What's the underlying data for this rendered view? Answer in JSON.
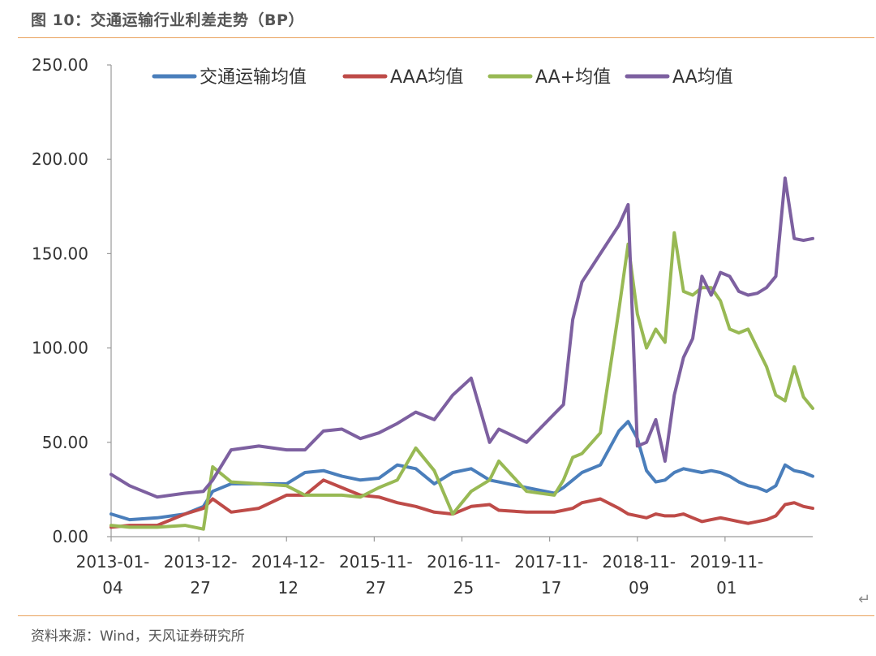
{
  "figure": {
    "title": "图 10：交通运输行业利差走势（BP）",
    "source": "资料来源：Wind，天风证券研究所",
    "return_mark": "↵"
  },
  "chart_data": {
    "type": "line",
    "title": "",
    "xlabel": "",
    "ylabel": "",
    "ylim": [
      0,
      250
    ],
    "grid": false,
    "legend_position": "top",
    "x_tick_labels": [
      [
        "2013-01-",
        "04"
      ],
      [
        "2013-12-",
        "27"
      ],
      [
        "2014-12-",
        "12"
      ],
      [
        "2015-11-",
        "27"
      ],
      [
        "2016-11-",
        "25"
      ],
      [
        "2017-11-",
        "17"
      ],
      [
        "2018-11-",
        "09"
      ],
      [
        "2019-11-",
        "01"
      ]
    ],
    "y_tick_labels": [
      "0.00",
      "50.00",
      "100.00",
      "150.00",
      "200.00",
      "250.00"
    ],
    "y_ticks": [
      0,
      50,
      100,
      150,
      200,
      250
    ],
    "x": [
      2013.0,
      2013.2,
      2013.5,
      2013.8,
      2014.0,
      2014.1,
      2014.3,
      2014.6,
      2014.9,
      2015.1,
      2015.3,
      2015.5,
      2015.7,
      2015.9,
      2016.1,
      2016.3,
      2016.5,
      2016.7,
      2016.9,
      2017.1,
      2017.2,
      2017.5,
      2017.8,
      2017.9,
      2018.0,
      2018.1,
      2018.3,
      2018.5,
      2018.6,
      2018.7,
      2018.8,
      2018.9,
      2019.0,
      2019.1,
      2019.2,
      2019.3,
      2019.4,
      2019.5,
      2019.6,
      2019.7,
      2019.8,
      2019.9,
      2020.0,
      2020.1,
      2020.2,
      2020.3,
      2020.4,
      2020.5,
      2020.6
    ],
    "series": [
      {
        "name": "交通运输均值",
        "color": "#4a7ebb",
        "values": [
          12,
          9,
          10,
          12,
          16,
          24,
          28,
          28,
          28,
          34,
          35,
          32,
          30,
          31,
          38,
          36,
          28,
          34,
          36,
          30,
          29,
          26,
          23,
          26,
          30,
          34,
          38,
          56,
          61,
          52,
          35,
          29,
          30,
          34,
          36,
          35,
          34,
          35,
          34,
          32,
          29,
          27,
          26,
          24,
          27,
          38,
          35,
          34,
          32
        ]
      },
      {
        "name": "AAA均值",
        "color": "#be4b48",
        "values": [
          5,
          6,
          6,
          12,
          15,
          20,
          13,
          15,
          22,
          22,
          30,
          26,
          22,
          21,
          18,
          16,
          13,
          12,
          16,
          17,
          14,
          13,
          13,
          14,
          15,
          18,
          20,
          15,
          12,
          11,
          10,
          12,
          11,
          11,
          12,
          10,
          8,
          9,
          10,
          9,
          8,
          7,
          8,
          9,
          11,
          17,
          18,
          16,
          15
        ]
      },
      {
        "name": "AA+均值",
        "color": "#98b954",
        "values": [
          6,
          5,
          5,
          6,
          4,
          37,
          29,
          28,
          27,
          22,
          22,
          22,
          21,
          26,
          30,
          47,
          35,
          12,
          24,
          30,
          40,
          24,
          22,
          30,
          42,
          44,
          55,
          120,
          155,
          118,
          100,
          110,
          103,
          161,
          130,
          128,
          132,
          132,
          125,
          110,
          108,
          110,
          100,
          90,
          75,
          72,
          90,
          74,
          68
        ]
      },
      {
        "name": "AA均值",
        "color": "#7d60a0",
        "values": [
          33,
          27,
          21,
          23,
          24,
          30,
          46,
          48,
          46,
          46,
          56,
          57,
          52,
          55,
          60,
          66,
          62,
          75,
          84,
          50,
          57,
          50,
          65,
          70,
          115,
          135,
          150,
          165,
          176,
          48,
          50,
          62,
          40,
          75,
          95,
          105,
          138,
          128,
          140,
          138,
          130,
          128,
          129,
          132,
          138,
          190,
          158,
          157,
          158
        ]
      }
    ]
  }
}
